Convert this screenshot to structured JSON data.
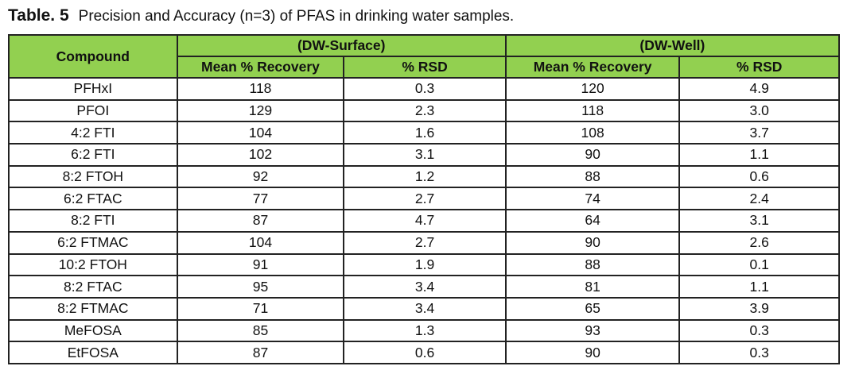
{
  "caption": {
    "label": "Table. 5",
    "text": "Precision and Accuracy (n=3) of PFAS in drinking water samples."
  },
  "header": {
    "compound": "Compound",
    "groups": [
      "(DW-Surface)",
      "(DW-Well)"
    ],
    "sub": [
      "Mean % Recovery",
      "% RSD",
      "Mean % Recovery",
      "% RSD"
    ]
  },
  "header_color": "#92d050",
  "rows": [
    [
      "PFHxI",
      "118",
      "0.3",
      "120",
      "4.9"
    ],
    [
      "PFOI",
      "129",
      "2.3",
      "118",
      "3.0"
    ],
    [
      "4:2 FTI",
      "104",
      "1.6",
      "108",
      "3.7"
    ],
    [
      "6:2 FTI",
      "102",
      "3.1",
      "90",
      "1.1"
    ],
    [
      "8:2 FTOH",
      "92",
      "1.2",
      "88",
      "0.6"
    ],
    [
      "6:2 FTAC",
      "77",
      "2.7",
      "74",
      "2.4"
    ],
    [
      "8:2 FTI",
      "87",
      "4.7",
      "64",
      "3.1"
    ],
    [
      "6:2 FTMAC",
      "104",
      "2.7",
      "90",
      "2.6"
    ],
    [
      "10:2 FTOH",
      "91",
      "1.9",
      "88",
      "0.1"
    ],
    [
      "8:2 FTAC",
      "95",
      "3.4",
      "81",
      "1.1"
    ],
    [
      "8:2 FTMAC",
      "71",
      "3.4",
      "65",
      "3.9"
    ],
    [
      "MeFOSA",
      "85",
      "1.3",
      "93",
      "0.3"
    ],
    [
      "EtFOSA",
      "87",
      "0.6",
      "90",
      "0.3"
    ]
  ]
}
